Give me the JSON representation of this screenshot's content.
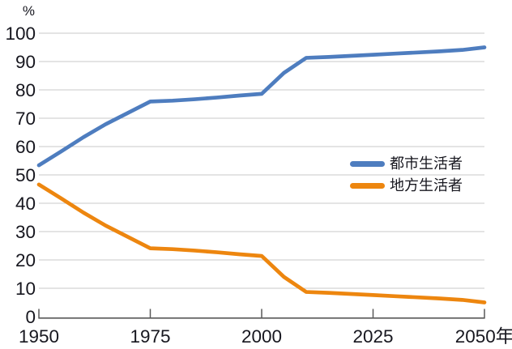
{
  "chart_data": {
    "type": "line",
    "title": "",
    "ylabel": "%",
    "xlabel": "",
    "ylim": [
      0,
      100
    ],
    "yticks": [
      0,
      10,
      20,
      30,
      40,
      50,
      60,
      70,
      80,
      90,
      100
    ],
    "grid": "horizontal",
    "legend_position": "middle-right",
    "x": [
      1950,
      1955,
      1960,
      1965,
      1970,
      1975,
      1980,
      1985,
      1990,
      1995,
      2000,
      2005,
      2010,
      2015,
      2020,
      2025,
      2030,
      2035,
      2040,
      2045,
      2050
    ],
    "x_ticks": [
      {
        "year": 1950,
        "label": "1950"
      },
      {
        "year": 1975,
        "label": "1975"
      },
      {
        "year": 2000,
        "label": "2000"
      },
      {
        "year": 2025,
        "label": "2025"
      },
      {
        "year": 2050,
        "label": "2050年"
      }
    ],
    "series": [
      {
        "name": "都市生活者",
        "color": "#4e7dbf",
        "values": [
          53.4,
          58.3,
          63.3,
          67.9,
          71.9,
          75.9,
          76.2,
          76.7,
          77.3,
          78.0,
          78.6,
          86.0,
          91.3,
          91.6,
          92.0,
          92.4,
          92.8,
          93.2,
          93.6,
          94.1,
          95.0
        ]
      },
      {
        "name": "地方生活者",
        "color": "#ed860f",
        "values": [
          46.6,
          41.7,
          36.7,
          32.1,
          28.1,
          24.1,
          23.8,
          23.3,
          22.7,
          22.0,
          21.4,
          14.0,
          8.7,
          8.4,
          8.0,
          7.6,
          7.2,
          6.8,
          6.4,
          5.9,
          5.0
        ]
      }
    ],
    "colors": {
      "grid": "#c9c9c9",
      "axis": "#595959",
      "text": "#16161e"
    }
  }
}
